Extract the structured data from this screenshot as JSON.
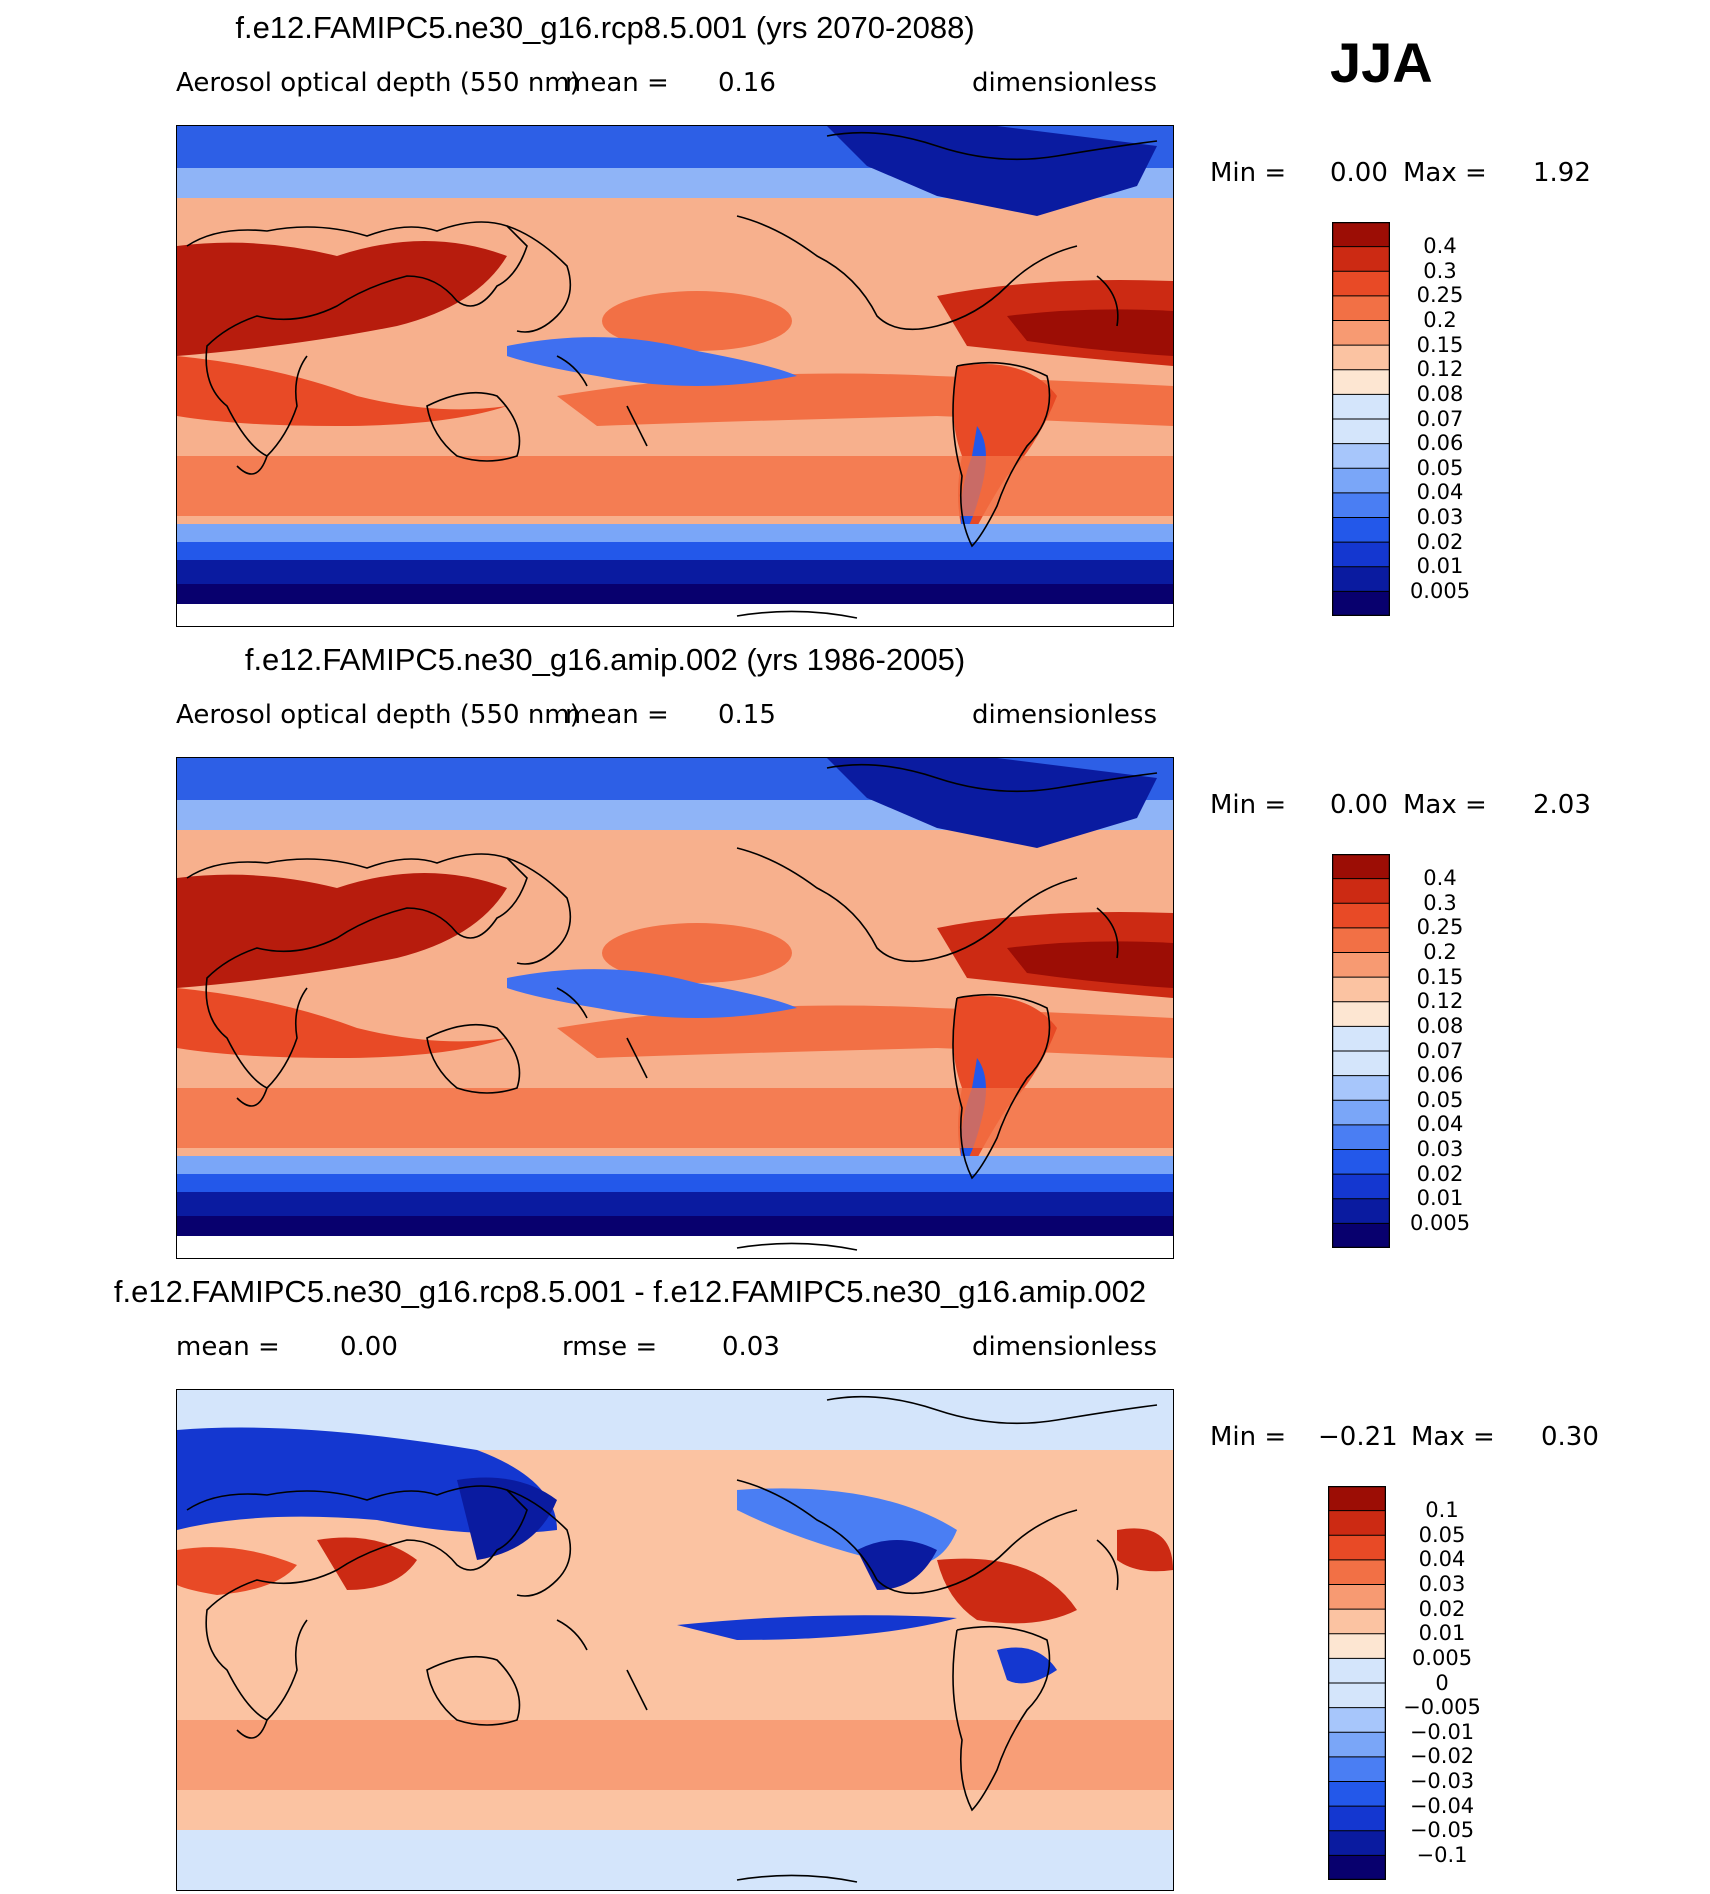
{
  "season": "JJA",
  "palette_diverging": [
    "#08006e",
    "#0a1ba0",
    "#1437d0",
    "#2358ea",
    "#4a7ef3",
    "#7aa6f8",
    "#a7c6fb",
    "#d4e5fb",
    "#fde6d2",
    "#fbc3a2",
    "#f79a72",
    "#f27045",
    "#e84a26",
    "#cc2a13",
    "#9c0d05"
  ],
  "panels": [
    {
      "title": "f.e12.FAMIPC5.ne30_g16.rcp8.5.001 (yrs 2070-2088)",
      "variable": "Aerosol optical depth (550 nm)",
      "mean_label": "mean =",
      "mean_value": "0.16",
      "units": "dimensionless",
      "min_label": "Min =",
      "min_value": "0.00",
      "max_label": "Max =",
      "max_value": "1.92",
      "colorbar_levels": [
        "0.4",
        "0.3",
        "0.25",
        "0.2",
        "0.15",
        "0.12",
        "0.08",
        "0.07",
        "0.06",
        "0.05",
        "0.04",
        "0.03",
        "0.02",
        "0.01",
        "0.005"
      ]
    },
    {
      "title": "f.e12.FAMIPC5.ne30_g16.amip.002 (yrs 1986-2005)",
      "variable": "Aerosol optical depth (550 nm)",
      "mean_label": "mean =",
      "mean_value": "0.15",
      "units": "dimensionless",
      "min_label": "Min =",
      "min_value": "0.00",
      "max_label": "Max =",
      "max_value": "2.03",
      "colorbar_levels": [
        "0.4",
        "0.3",
        "0.25",
        "0.2",
        "0.15",
        "0.12",
        "0.08",
        "0.07",
        "0.06",
        "0.05",
        "0.04",
        "0.03",
        "0.02",
        "0.01",
        "0.005"
      ]
    },
    {
      "title": "f.e12.FAMIPC5.ne30_g16.rcp8.5.001 - f.e12.FAMIPC5.ne30_g16.amip.002",
      "mean_label": "mean =",
      "mean_value": "0.00",
      "rmse_label": "rmse =",
      "rmse_value": "0.03",
      "units": "dimensionless",
      "min_label": "Min =",
      "min_value": "−0.21",
      "max_label": "Max =",
      "max_value": "0.30",
      "colorbar_levels": [
        "0.1",
        "0.05",
        "0.04",
        "0.03",
        "0.02",
        "0.01",
        "0.005",
        "0",
        "−0.005",
        "−0.01",
        "−0.02",
        "−0.03",
        "−0.04",
        "−0.05",
        "−0.1"
      ]
    }
  ],
  "chart_data": [
    {
      "type": "heatmap",
      "title": "f.e12.FAMIPC5.ne30_g16.rcp8.5.001 (yrs 2070-2088)",
      "variable": "Aerosol optical depth (550 nm)",
      "units": "dimensionless",
      "season": "JJA",
      "mean": 0.16,
      "min": 0.0,
      "max": 1.92,
      "contour_levels": [
        0.005,
        0.01,
        0.02,
        0.03,
        0.04,
        0.05,
        0.06,
        0.07,
        0.08,
        0.12,
        0.15,
        0.2,
        0.25,
        0.3,
        0.4
      ]
    },
    {
      "type": "heatmap",
      "title": "f.e12.FAMIPC5.ne30_g16.amip.002 (yrs 1986-2005)",
      "variable": "Aerosol optical depth (550 nm)",
      "units": "dimensionless",
      "season": "JJA",
      "mean": 0.15,
      "min": 0.0,
      "max": 2.03,
      "contour_levels": [
        0.005,
        0.01,
        0.02,
        0.03,
        0.04,
        0.05,
        0.06,
        0.07,
        0.08,
        0.12,
        0.15,
        0.2,
        0.25,
        0.3,
        0.4
      ]
    },
    {
      "type": "heatmap",
      "title": "f.e12.FAMIPC5.ne30_g16.rcp8.5.001 - f.e12.FAMIPC5.ne30_g16.amip.002",
      "units": "dimensionless",
      "season": "JJA",
      "mean": 0.0,
      "rmse": 0.03,
      "min": -0.21,
      "max": 0.3,
      "contour_levels": [
        -0.1,
        -0.05,
        -0.04,
        -0.03,
        -0.02,
        -0.01,
        -0.005,
        0,
        0.005,
        0.01,
        0.02,
        0.03,
        0.04,
        0.05,
        0.1
      ]
    }
  ]
}
